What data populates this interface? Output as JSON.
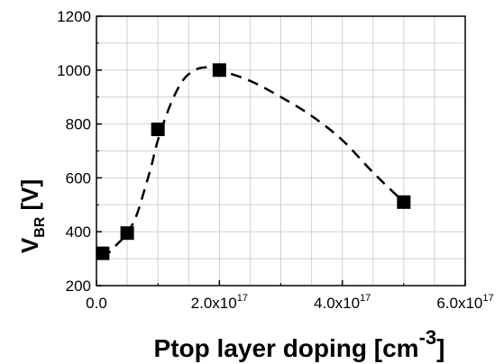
{
  "chart_data": {
    "type": "scatter",
    "title": "",
    "xlabel": "Ptop layer doping [cm",
    "xlabel_superscript": "-3",
    "xlabel_close": "]",
    "ylabel": "V",
    "ylabel_subscript": "BR",
    "ylabel_unit": " [V]",
    "xlim": [
      0,
      6e+17
    ],
    "ylim": [
      200,
      1200
    ],
    "grid": true,
    "legend": "none",
    "x_ticks": [
      {
        "value": 0,
        "label": "0.0",
        "exp": ""
      },
      {
        "value": 2e+17,
        "label": "2.0x10",
        "exp": "17"
      },
      {
        "value": 4e+17,
        "label": "4.0x10",
        "exp": "17"
      },
      {
        "value": 6e+17,
        "label": "6.0x10",
        "exp": "17"
      }
    ],
    "y_ticks": [
      {
        "value": 200,
        "label": "200"
      },
      {
        "value": 400,
        "label": "400"
      },
      {
        "value": 600,
        "label": "600"
      },
      {
        "value": 800,
        "label": "800"
      },
      {
        "value": 1000,
        "label": "1000"
      },
      {
        "value": 1200,
        "label": "1200"
      }
    ],
    "series": [
      {
        "marker": "square",
        "color": "#000000",
        "x": [
          1e+16,
          5e+16,
          1e+17,
          2e+17,
          5e+17
        ],
        "y": [
          320,
          395,
          780,
          1000,
          510
        ]
      }
    ],
    "fit_curve": {
      "style": "dashed",
      "color": "#000000",
      "x": [
        1e+16,
        3e+16,
        5e+16,
        6.5e+16,
        8e+16,
        9e+16,
        1e+17,
        1.2e+17,
        1.4e+17,
        1.6e+17,
        1.8e+17,
        2e+17,
        2.5e+17,
        3e+17,
        3.5e+17,
        4e+17,
        4.5e+17,
        5e+17
      ],
      "y": [
        300,
        345,
        395,
        460,
        570,
        650,
        740,
        870,
        960,
        1000,
        1010,
        1000,
        960,
        900,
        830,
        740,
        620,
        510
      ]
    }
  }
}
